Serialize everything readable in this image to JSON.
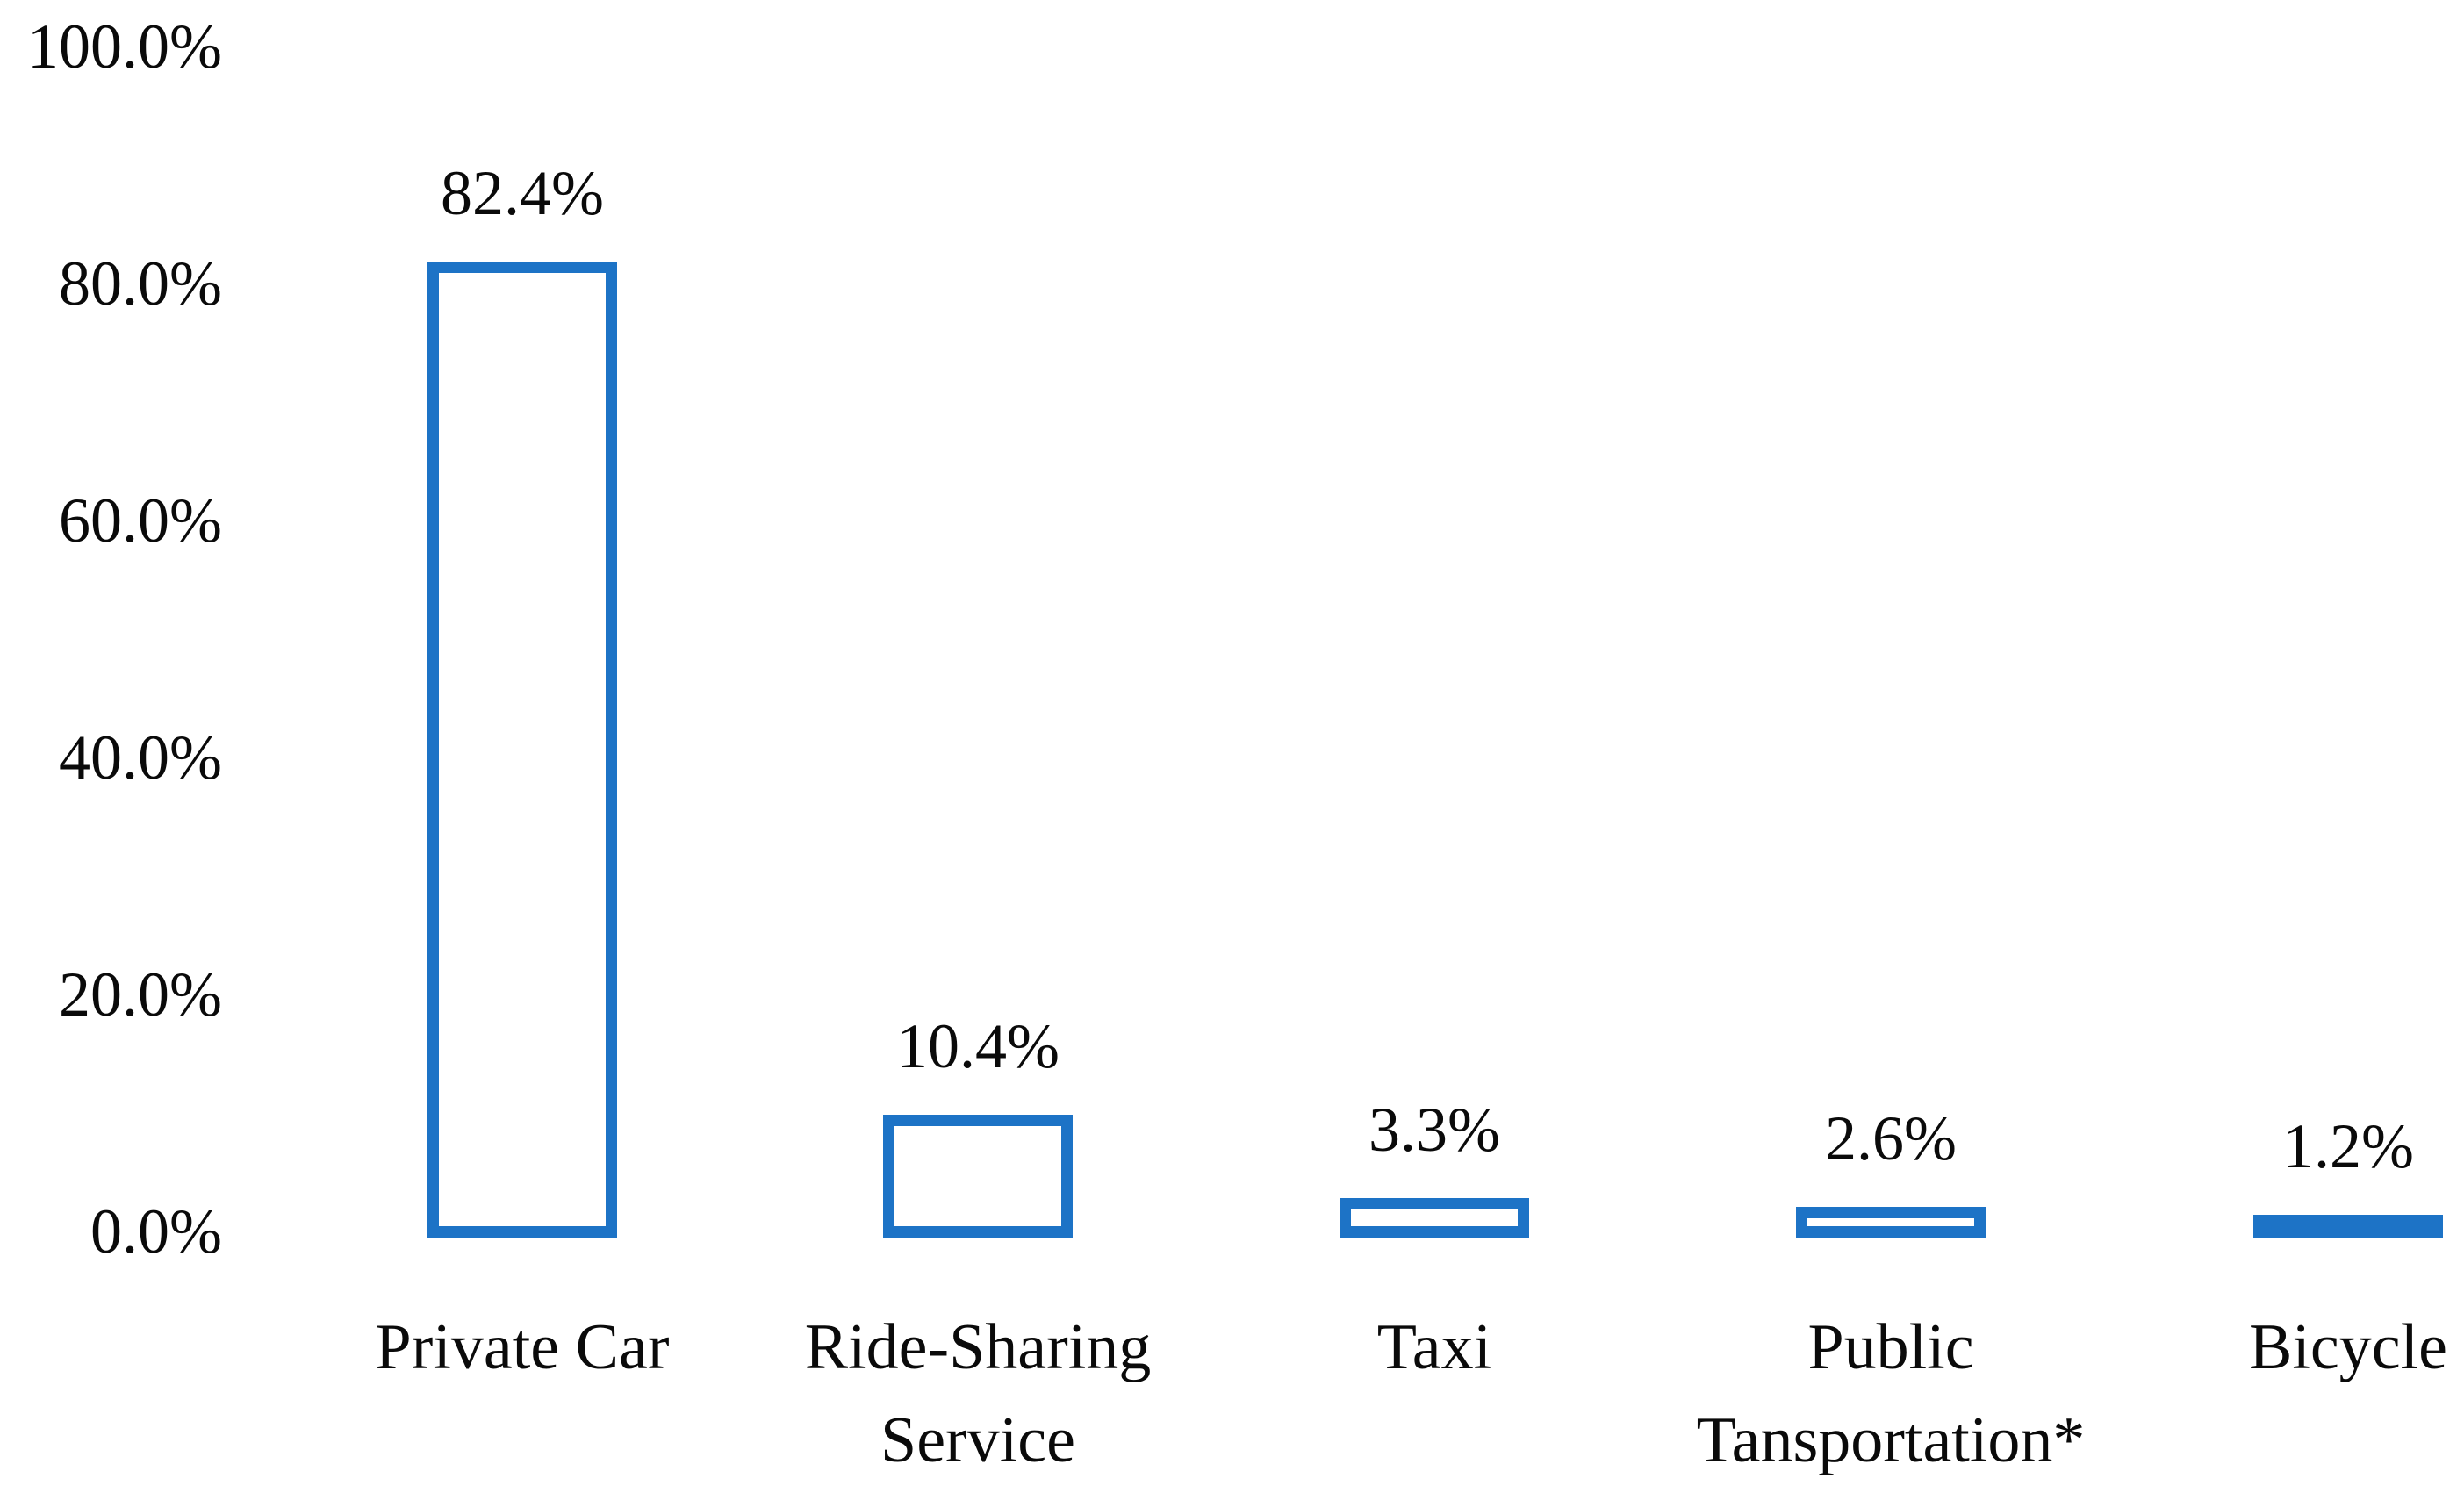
{
  "chart_data": {
    "type": "bar",
    "title": "",
    "xlabel": "",
    "ylabel": "",
    "categories": [
      "Private Car",
      "Ride-Sharing Service",
      "Taxi",
      "Public Tansportation*",
      "Bicycle"
    ],
    "values": [
      82.4,
      10.4,
      3.3,
      2.6,
      1.2
    ],
    "data_labels": [
      "82.4%",
      "10.4%",
      "3.3%",
      "2.6%",
      "1.2%"
    ],
    "ytick_labels": [
      "100.0%",
      "80.0%",
      "60.0%",
      "40.0%",
      "20.0%",
      "0.0%"
    ],
    "ytick_values": [
      100,
      80,
      60,
      40,
      20,
      0
    ],
    "ylim": [
      0,
      100
    ],
    "grid": false,
    "legend": false,
    "bar_fill_color": "#ffffff",
    "bar_border_color": "#1d73c6",
    "text_color": "#0a0a0a",
    "background_color": "#ffffff"
  }
}
